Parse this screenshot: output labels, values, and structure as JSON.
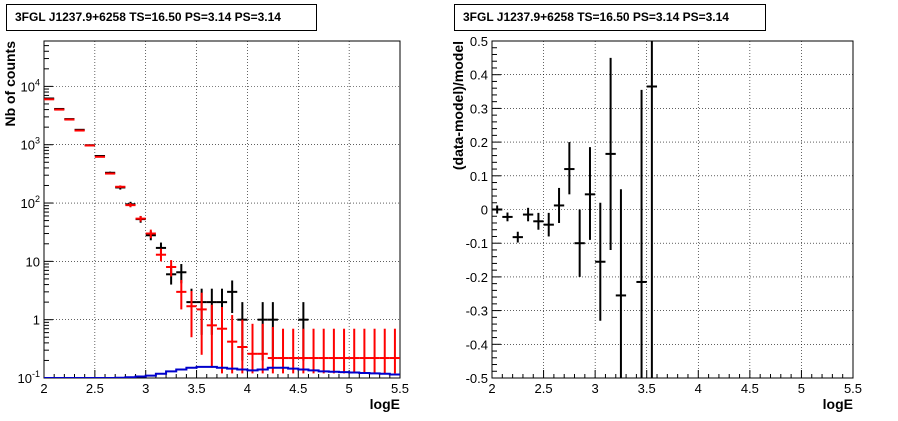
{
  "chart_data": [
    {
      "type": "scatter",
      "title": "3FGL J1237.9+6258 TS=16.50 PS=3.14 PS=3.14",
      "xlabel": "logE",
      "ylabel": "Nb of counts",
      "xlim": [
        2,
        5.5
      ],
      "ylim": [
        0.1,
        60000
      ],
      "yscale": "log",
      "grid": true,
      "xticks": [
        "2",
        "2.5",
        "3",
        "3.5",
        "4",
        "4.5",
        "5",
        "5.5"
      ],
      "yticks": [
        "10^-1",
        "1",
        "10",
        "10^2",
        "10^3",
        "10^4"
      ],
      "series": [
        {
          "color": "#000000",
          "style": "errorbar",
          "points": [
            {
              "x": 2.05,
              "y": 6200,
              "lo": 6100,
              "hi": 6300
            },
            {
              "x": 2.15,
              "y": 4100,
              "lo": 4050,
              "hi": 4200
            },
            {
              "x": 2.25,
              "y": 2750,
              "lo": 2700,
              "hi": 2800
            },
            {
              "x": 2.35,
              "y": 1800,
              "lo": 1750,
              "hi": 1850
            },
            {
              "x": 2.45,
              "y": 980,
              "lo": 950,
              "hi": 1010
            },
            {
              "x": 2.55,
              "y": 640,
              "lo": 615,
              "hi": 665
            },
            {
              "x": 2.65,
              "y": 330,
              "lo": 315,
              "hi": 345
            },
            {
              "x": 2.75,
              "y": 185,
              "lo": 170,
              "hi": 200
            },
            {
              "x": 2.85,
              "y": 95,
              "lo": 85,
              "hi": 105
            },
            {
              "x": 2.95,
              "y": 53,
              "lo": 46,
              "hi": 60
            },
            {
              "x": 3.05,
              "y": 28,
              "lo": 23,
              "hi": 33
            },
            {
              "x": 3.15,
              "y": 17,
              "lo": 13,
              "hi": 21
            },
            {
              "x": 3.25,
              "y": 6,
              "lo": 4,
              "hi": 8.5
            },
            {
              "x": 3.35,
              "y": 6.5,
              "lo": 4.2,
              "hi": 9
            },
            {
              "x": 3.45,
              "y": 2,
              "lo": 0.55,
              "hi": 3.4
            },
            {
              "x": 3.55,
              "y": 2,
              "lo": 0.55,
              "hi": 3.4
            },
            {
              "x": 3.65,
              "y": 2,
              "lo": 0.55,
              "hi": 3.4
            },
            {
              "x": 3.75,
              "y": 2,
              "lo": 0.55,
              "hi": 3.4
            },
            {
              "x": 3.85,
              "y": 3,
              "lo": 1.3,
              "hi": 4.7
            },
            {
              "x": 3.95,
              "y": 1,
              "lo": 0.2,
              "hi": 2
            },
            {
              "x": 4.15,
              "y": 1,
              "lo": 0.2,
              "hi": 2
            },
            {
              "x": 4.25,
              "y": 1,
              "lo": 0.2,
              "hi": 2
            },
            {
              "x": 4.55,
              "y": 1,
              "lo": 0.2,
              "hi": 2
            }
          ]
        },
        {
          "color": "#ff0000",
          "style": "errorbar",
          "points": [
            {
              "x": 2.05,
              "y": 6000,
              "lo": 5950,
              "hi": 6050
            },
            {
              "x": 2.15,
              "y": 4000,
              "lo": 3960,
              "hi": 4040
            },
            {
              "x": 2.25,
              "y": 2700,
              "lo": 2670,
              "hi": 2730
            },
            {
              "x": 2.35,
              "y": 1750,
              "lo": 1720,
              "hi": 1780
            },
            {
              "x": 2.45,
              "y": 970,
              "lo": 950,
              "hi": 990
            },
            {
              "x": 2.55,
              "y": 620,
              "lo": 605,
              "hi": 635
            },
            {
              "x": 2.65,
              "y": 320,
              "lo": 310,
              "hi": 330
            },
            {
              "x": 2.75,
              "y": 190,
              "lo": 180,
              "hi": 200
            },
            {
              "x": 2.85,
              "y": 92,
              "lo": 85,
              "hi": 100
            },
            {
              "x": 2.95,
              "y": 54,
              "lo": 48,
              "hi": 60
            },
            {
              "x": 3.05,
              "y": 30,
              "lo": 25,
              "hi": 35
            },
            {
              "x": 3.15,
              "y": 13,
              "lo": 10,
              "hi": 16.5
            },
            {
              "x": 3.25,
              "y": 8,
              "lo": 5.5,
              "hi": 10.5
            },
            {
              "x": 3.35,
              "y": 3,
              "lo": 1.5,
              "hi": 4.8
            },
            {
              "x": 3.45,
              "y": 1.7,
              "lo": 0.5,
              "hi": 3.1
            },
            {
              "x": 3.55,
              "y": 1.5,
              "lo": 0.25,
              "hi": 2.9
            },
            {
              "x": 3.65,
              "y": 0.8,
              "lo": 0.15,
              "hi": 1.8
            },
            {
              "x": 3.75,
              "y": 0.7,
              "lo": 0.12,
              "hi": 1.65
            },
            {
              "x": 3.85,
              "y": 0.42,
              "lo": 0.12,
              "hi": 1.2
            },
            {
              "x": 3.95,
              "y": 0.34,
              "lo": 0.12,
              "hi": 1.0
            },
            {
              "x": 4.05,
              "y": 0.26,
              "lo": 0.12,
              "hi": 0.85
            },
            {
              "x": 4.15,
              "y": 0.26,
              "lo": 0.12,
              "hi": 0.85
            },
            {
              "x": 4.25,
              "y": 0.22,
              "lo": 0.12,
              "hi": 0.75
            },
            {
              "x": 4.35,
              "y": 0.22,
              "lo": 0.12,
              "hi": 0.7
            },
            {
              "x": 4.45,
              "y": 0.22,
              "lo": 0.12,
              "hi": 0.7
            },
            {
              "x": 4.55,
              "y": 0.22,
              "lo": 0.12,
              "hi": 0.7
            },
            {
              "x": 4.65,
              "y": 0.22,
              "lo": 0.12,
              "hi": 0.7
            },
            {
              "x": 4.75,
              "y": 0.22,
              "lo": 0.12,
              "hi": 0.7
            },
            {
              "x": 4.85,
              "y": 0.22,
              "lo": 0.12,
              "hi": 0.7
            },
            {
              "x": 4.95,
              "y": 0.22,
              "lo": 0.12,
              "hi": 0.7
            },
            {
              "x": 5.05,
              "y": 0.22,
              "lo": 0.12,
              "hi": 0.7
            },
            {
              "x": 5.15,
              "y": 0.22,
              "lo": 0.12,
              "hi": 0.7
            },
            {
              "x": 5.25,
              "y": 0.22,
              "lo": 0.12,
              "hi": 0.7
            },
            {
              "x": 5.35,
              "y": 0.22,
              "lo": 0.12,
              "hi": 0.7
            },
            {
              "x": 5.45,
              "y": 0.22,
              "lo": 0.12,
              "hi": 0.7
            }
          ]
        },
        {
          "color": "#0000cc",
          "style": "step",
          "x": [
            2.05,
            2.15,
            2.25,
            2.35,
            2.45,
            2.55,
            2.65,
            2.75,
            2.85,
            2.95,
            3.05,
            3.15,
            3.25,
            3.35,
            3.45,
            3.55,
            3.65,
            3.75,
            3.85,
            3.95,
            4.05,
            4.15,
            4.25,
            4.35,
            4.45,
            4.55,
            4.65,
            4.75,
            4.85,
            4.95,
            5.05,
            5.15,
            5.25,
            5.35,
            5.45
          ],
          "y": [
            0.1,
            0.1,
            0.1,
            0.1,
            0.1,
            0.1,
            0.1,
            0.101,
            0.103,
            0.106,
            0.11,
            0.118,
            0.13,
            0.14,
            0.15,
            0.155,
            0.155,
            0.15,
            0.145,
            0.14,
            0.135,
            0.14,
            0.15,
            0.15,
            0.145,
            0.14,
            0.135,
            0.13,
            0.128,
            0.126,
            0.124,
            0.122,
            0.12,
            0.118,
            0.115
          ]
        }
      ]
    },
    {
      "type": "scatter",
      "title": "3FGL J1237.9+6258 TS=16.50 PS=3.14 PS=3.14",
      "xlabel": "logE",
      "ylabel": "(data-model)/model",
      "xlim": [
        2,
        5.5
      ],
      "ylim": [
        -0.5,
        0.5
      ],
      "grid": true,
      "xticks": [
        "2",
        "2.5",
        "3",
        "3.5",
        "4",
        "4.5",
        "5",
        "5.5"
      ],
      "yticks": [
        "-0.5",
        "-0.4",
        "-0.3",
        "-0.2",
        "-0.1",
        "0",
        "0.1",
        "0.2",
        "0.3",
        "0.4",
        "0.5"
      ],
      "series": [
        {
          "color": "#000000",
          "style": "errorbar",
          "points": [
            {
              "x": 2.05,
              "y": 0.0,
              "lo": -0.012,
              "hi": 0.012
            },
            {
              "x": 2.15,
              "y": -0.022,
              "lo": -0.035,
              "hi": -0.009
            },
            {
              "x": 2.25,
              "y": -0.082,
              "lo": -0.098,
              "hi": -0.066
            },
            {
              "x": 2.35,
              "y": -0.015,
              "lo": -0.035,
              "hi": 0.005
            },
            {
              "x": 2.45,
              "y": -0.035,
              "lo": -0.06,
              "hi": -0.01
            },
            {
              "x": 2.55,
              "y": -0.045,
              "lo": -0.08,
              "hi": -0.01
            },
            {
              "x": 2.65,
              "y": 0.012,
              "lo": -0.04,
              "hi": 0.064
            },
            {
              "x": 2.75,
              "y": 0.12,
              "lo": 0.045,
              "hi": 0.2
            },
            {
              "x": 2.85,
              "y": -0.1,
              "lo": -0.2,
              "hi": 0.0
            },
            {
              "x": 2.95,
              "y": 0.045,
              "lo": -0.09,
              "hi": 0.185
            },
            {
              "x": 3.05,
              "y": -0.155,
              "lo": -0.33,
              "hi": 0.02
            },
            {
              "x": 3.15,
              "y": 0.165,
              "lo": -0.12,
              "hi": 0.45
            },
            {
              "x": 3.25,
              "y": -0.255,
              "lo": -0.5,
              "hi": 0.06
            },
            {
              "x": 3.45,
              "y": -0.215,
              "lo": -0.5,
              "hi": 0.355
            },
            {
              "x": 3.55,
              "y": 0.365,
              "lo": -0.5,
              "hi": 0.5
            }
          ]
        }
      ]
    }
  ]
}
